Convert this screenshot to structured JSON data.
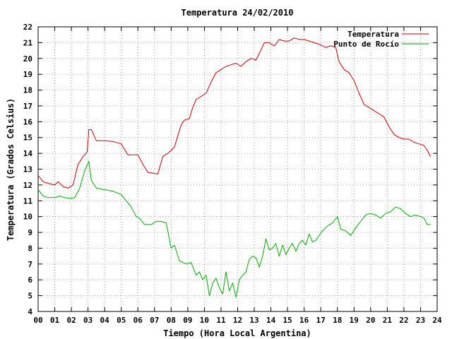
{
  "chart_data": {
    "type": "line",
    "title": "Temperatura 24/02/2010",
    "xlabel": "Tiempo (Hora Local Argentina)",
    "ylabel": "Temperatura (Grados Celsius)",
    "xlim": [
      0,
      24
    ],
    "ylim": [
      4,
      22
    ],
    "xticks": [
      "00",
      "01",
      "02",
      "03",
      "04",
      "05",
      "06",
      "07",
      "08",
      "09",
      "10",
      "11",
      "12",
      "13",
      "14",
      "15",
      "16",
      "17",
      "18",
      "19",
      "20",
      "21",
      "22",
      "23",
      "24"
    ],
    "yticks": [
      4,
      5,
      6,
      7,
      8,
      9,
      10,
      11,
      12,
      13,
      14,
      15,
      16,
      17,
      18,
      19,
      20,
      21,
      22
    ],
    "grid": true,
    "legend_position": "top-right",
    "series": [
      {
        "name": "Temperatura",
        "color": "#cc0000",
        "x": [
          0,
          0.3,
          0.6,
          1.0,
          1.2,
          1.5,
          1.8,
          2.1,
          2.4,
          2.7,
          2.95,
          3.05,
          3.2,
          3.5,
          4.0,
          4.5,
          5.0,
          5.4,
          5.7,
          6.0,
          6.3,
          6.6,
          6.9,
          7.2,
          7.5,
          7.8,
          8.2,
          8.6,
          8.8,
          9.1,
          9.3,
          9.5,
          9.8,
          10.1,
          10.4,
          10.7,
          11.0,
          11.3,
          11.6,
          11.9,
          12.2,
          12.5,
          12.8,
          13.1,
          13.3,
          13.6,
          13.9,
          14.2,
          14.5,
          14.8,
          15.1,
          15.4,
          15.7,
          16.0,
          16.3,
          16.6,
          16.9,
          17.1,
          17.3,
          17.6,
          17.9,
          18.1,
          18.4,
          18.7,
          19.0,
          19.3,
          19.6,
          19.9,
          20.2,
          20.5,
          20.8,
          21.1,
          21.4,
          21.7,
          22.0,
          22.3,
          22.6,
          22.9,
          23.2,
          23.4,
          23.6
        ],
        "y": [
          12.6,
          12.2,
          12.1,
          12.0,
          12.2,
          11.9,
          11.8,
          12.0,
          13.3,
          13.8,
          14.1,
          15.5,
          15.5,
          14.8,
          14.8,
          14.75,
          14.6,
          13.9,
          13.9,
          13.9,
          13.3,
          12.8,
          12.75,
          12.7,
          13.8,
          14.0,
          14.4,
          15.8,
          16.1,
          16.2,
          16.9,
          17.4,
          17.6,
          17.8,
          18.5,
          19.1,
          19.3,
          19.5,
          19.6,
          19.7,
          19.5,
          19.8,
          20.0,
          19.9,
          20.3,
          21.0,
          21.0,
          20.8,
          21.2,
          21.1,
          21.1,
          21.3,
          21.2,
          21.2,
          21.1,
          21.0,
          20.9,
          20.8,
          20.7,
          20.8,
          20.7,
          19.8,
          19.3,
          19.1,
          18.6,
          17.8,
          17.1,
          16.9,
          16.7,
          16.5,
          16.3,
          15.7,
          15.2,
          15.0,
          14.9,
          14.9,
          14.7,
          14.6,
          14.5,
          14.2,
          13.8
        ]
      },
      {
        "name": "Punto de Rocío",
        "color": "#00aa00",
        "x": [
          0,
          0.3,
          0.6,
          1.0,
          1.3,
          1.6,
          1.9,
          2.2,
          2.5,
          2.8,
          3.05,
          3.2,
          3.5,
          4.0,
          4.5,
          5.0,
          5.3,
          5.6,
          5.9,
          6.1,
          6.4,
          6.8,
          7.1,
          7.4,
          7.7,
          8.0,
          8.2,
          8.5,
          8.9,
          9.2,
          9.5,
          9.7,
          9.9,
          10.1,
          10.3,
          10.5,
          10.7,
          10.9,
          11.1,
          11.3,
          11.5,
          11.7,
          11.9,
          12.1,
          12.3,
          12.5,
          12.7,
          12.9,
          13.1,
          13.3,
          13.5,
          13.7,
          13.9,
          14.1,
          14.3,
          14.5,
          14.7,
          14.9,
          15.1,
          15.3,
          15.5,
          15.7,
          15.9,
          16.1,
          16.3,
          16.5,
          16.7,
          16.9,
          17.1,
          17.4,
          17.7,
          18.0,
          18.2,
          18.5,
          18.8,
          19.1,
          19.4,
          19.7,
          20.0,
          20.3,
          20.6,
          20.9,
          21.2,
          21.5,
          21.8,
          22.1,
          22.4,
          22.7,
          23.0,
          23.2,
          23.4,
          23.6
        ],
        "y": [
          11.7,
          11.3,
          11.2,
          11.2,
          11.3,
          11.2,
          11.15,
          11.2,
          11.8,
          12.9,
          13.5,
          12.3,
          11.8,
          11.7,
          11.6,
          11.4,
          11.0,
          10.6,
          10.0,
          9.9,
          9.5,
          9.5,
          9.7,
          9.7,
          9.6,
          8.0,
          8.2,
          7.2,
          7.0,
          7.1,
          6.3,
          6.5,
          6.0,
          6.3,
          5.0,
          5.8,
          6.1,
          5.5,
          5.1,
          6.5,
          5.3,
          5.8,
          4.9,
          6.0,
          6.3,
          6.5,
          7.3,
          7.5,
          7.4,
          6.8,
          7.5,
          8.6,
          7.9,
          8.0,
          8.3,
          7.5,
          8.2,
          7.6,
          8.0,
          8.3,
          7.8,
          8.3,
          8.5,
          8.2,
          8.9,
          8.4,
          8.5,
          8.8,
          9.1,
          9.4,
          9.6,
          10.0,
          9.2,
          9.1,
          8.8,
          9.3,
          9.7,
          10.1,
          10.2,
          10.1,
          9.9,
          10.2,
          10.3,
          10.6,
          10.5,
          10.2,
          10.0,
          10.1,
          10.0,
          9.9,
          9.5,
          9.5
        ]
      }
    ]
  }
}
